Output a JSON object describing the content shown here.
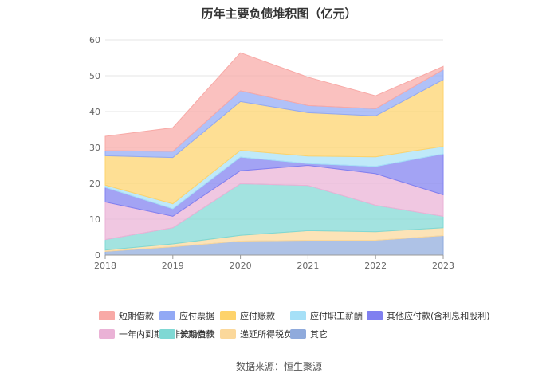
{
  "title": "历年主要负债堆积图（亿元）",
  "source": "数据来源：恒生聚源",
  "chart_data": {
    "type": "area",
    "stacked": true,
    "x": [
      "2018",
      "2019",
      "2020",
      "2021",
      "2022",
      "2023"
    ],
    "ylim": [
      0,
      60
    ],
    "yticks": [
      0,
      10,
      20,
      30,
      40,
      50,
      60
    ],
    "grid": true,
    "legend_position": "bottom",
    "series": [
      {
        "name": "其它",
        "color": "#8faadc",
        "values": [
          1.0,
          2.3,
          3.9,
          4.1,
          4.1,
          5.4
        ]
      },
      {
        "name": "递延所得税负债",
        "color": "#fbd89b",
        "values": [
          0.4,
          0.8,
          1.6,
          2.7,
          2.4,
          2.2
        ]
      },
      {
        "name": "长期借款",
        "color": "#7fd8d4",
        "values": [
          2.9,
          4.5,
          14.4,
          12.6,
          7.4,
          3.2
        ]
      },
      {
        "name": "一年内到期的非流动负债",
        "color": "#eab2d6",
        "values": [
          10.5,
          3.2,
          3.6,
          5.6,
          8.8,
          6.0
        ]
      },
      {
        "name": "其他应付款(含利息和股利)",
        "color": "#8080f0",
        "values": [
          4.1,
          2.1,
          3.8,
          0.5,
          2.0,
          11.4
        ]
      },
      {
        "name": "应付职工薪酬",
        "color": "#a6e0f7",
        "values": [
          0.6,
          1.4,
          1.9,
          2.1,
          2.7,
          2.1
        ]
      },
      {
        "name": "应付账款",
        "color": "#fed36b",
        "values": [
          8.2,
          12.9,
          13.6,
          12.1,
          11.4,
          18.6
        ]
      },
      {
        "name": "应付票据",
        "color": "#92a9f5",
        "values": [
          1.4,
          1.7,
          3.0,
          2.0,
          2.0,
          2.8
        ]
      },
      {
        "name": "短期借款",
        "color": "#f8a9a6",
        "values": [
          4.0,
          6.6,
          10.6,
          7.9,
          3.6,
          0.9
        ]
      }
    ]
  },
  "legend_order": [
    "短期借款",
    "应付票据",
    "应付账款",
    "应付职工薪酬",
    "其他应付款(含利息和股利)",
    "一年内到期的非流动负债",
    "长期借款",
    "递延所得税负债",
    "其它"
  ]
}
